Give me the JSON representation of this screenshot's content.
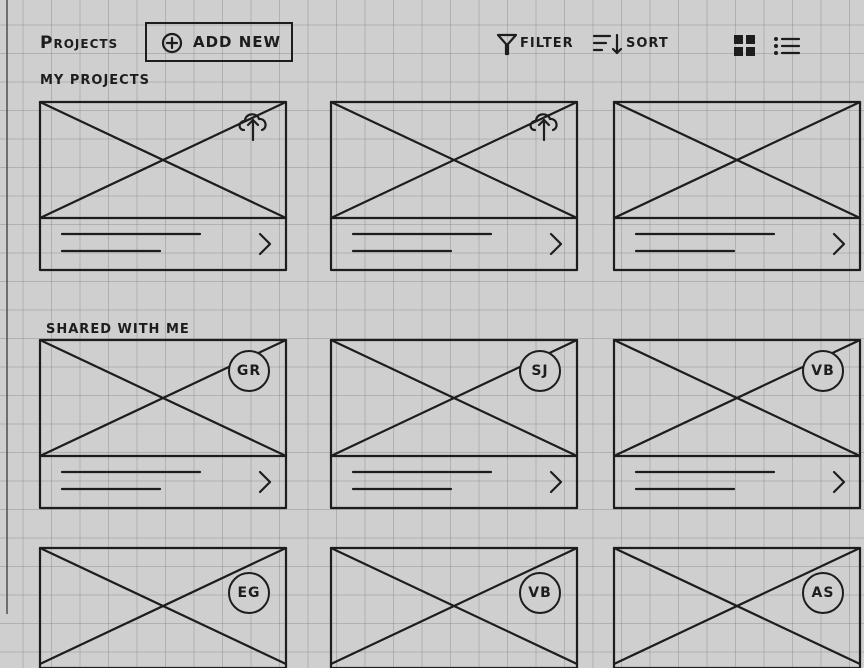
{
  "header": {
    "title": "Projects",
    "add_new_label": "ADD NEW",
    "filter_label": "FILTER",
    "sort_label": "SORT"
  },
  "sections": {
    "my_projects_label": "MY PROJECTS",
    "shared_label": "SHARED WITH ME"
  },
  "icons": {
    "add": "plus-circle-icon",
    "filter": "filter-funnel-icon",
    "sort": "sort-icon",
    "grid": "grid-view-icon",
    "list": "list-view-icon",
    "upload": "cloud-upload-icon",
    "open": "chevron-right-icon"
  },
  "my_projects": [
    {
      "upload_icon": true
    },
    {
      "upload_icon": true
    },
    {
      "upload_icon": false
    }
  ],
  "shared_projects": [
    {
      "owner_initials": "GR"
    },
    {
      "owner_initials": "SJ"
    },
    {
      "owner_initials": "VB"
    },
    {
      "owner_initials": "EG"
    },
    {
      "owner_initials": "VB"
    },
    {
      "owner_initials": "AS"
    }
  ]
}
